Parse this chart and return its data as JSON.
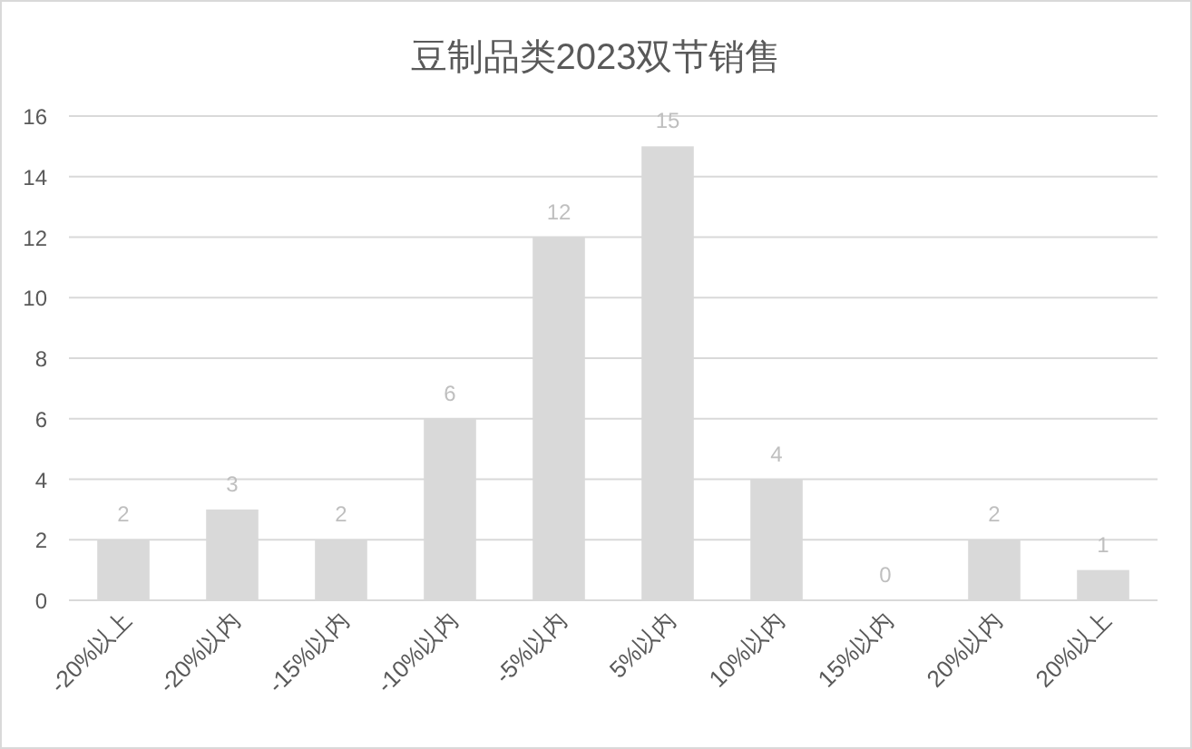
{
  "chart_data": {
    "type": "bar",
    "title": "豆制品类2023双节销售",
    "categories": [
      "-20%以上",
      "-20%以内",
      "-15%以内",
      "-10%以内",
      "-5%以内",
      "5%以内",
      "10%以内",
      "15%以内",
      "20%以内",
      "20%以上"
    ],
    "values": [
      2,
      3,
      2,
      6,
      12,
      15,
      4,
      0,
      2,
      1
    ],
    "color": "#d9d9d9",
    "ylim": [
      0,
      16
    ],
    "yticks": [
      0,
      2,
      4,
      6,
      8,
      10,
      12,
      14,
      16
    ],
    "grid": "y",
    "data_labels": true
  }
}
